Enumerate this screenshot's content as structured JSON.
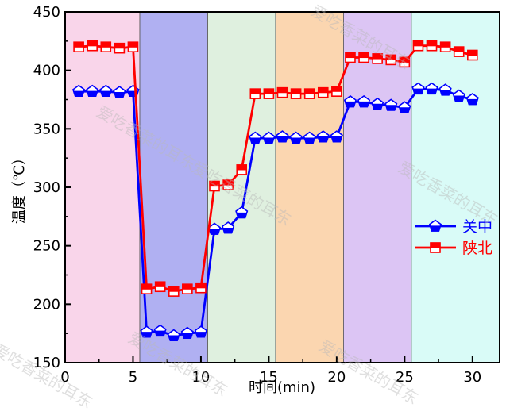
{
  "chart_data": {
    "type": "line",
    "xlabel": "时间(min)",
    "ylabel": "温度（℃）",
    "xlim": [
      0,
      32
    ],
    "ylim": [
      150,
      450
    ],
    "xticks": [
      0,
      5,
      10,
      15,
      20,
      25,
      30
    ],
    "yticks": [
      150,
      200,
      250,
      300,
      350,
      400,
      450
    ],
    "grid": false,
    "legend_position": "right",
    "bands": [
      {
        "from": 0,
        "to": 5.5,
        "color": "#f9d5ea"
      },
      {
        "from": 5.5,
        "to": 10.5,
        "color": "#b0b0f2"
      },
      {
        "from": 10.5,
        "to": 15.5,
        "color": "#dff0df"
      },
      {
        "from": 15.5,
        "to": 20.5,
        "color": "#fbd6b0"
      },
      {
        "from": 20.5,
        "to": 25.5,
        "color": "#dcc5f4"
      },
      {
        "from": 25.5,
        "to": 32,
        "color": "#d9fbf7"
      }
    ],
    "series": [
      {
        "name": "关中",
        "color": "#0000ff",
        "marker": "pentagon-half-filled",
        "x": [
          1,
          2,
          3,
          4,
          5,
          6,
          7,
          8,
          9,
          10,
          11,
          12,
          13,
          14,
          15,
          16,
          17,
          18,
          19,
          20,
          21,
          22,
          23,
          24,
          25,
          26,
          27,
          28,
          29,
          30
        ],
        "values": [
          382,
          382,
          382,
          381,
          382,
          176,
          177,
          173,
          175,
          176,
          264,
          265,
          278,
          342,
          342,
          343,
          342,
          342,
          343,
          343,
          373,
          373,
          371,
          370,
          368,
          384,
          384,
          383,
          378,
          375
        ]
      },
      {
        "name": "陕北",
        "color": "#ff0000",
        "marker": "square-half-filled",
        "x": [
          1,
          2,
          3,
          4,
          5,
          6,
          7,
          8,
          9,
          10,
          11,
          12,
          13,
          14,
          15,
          16,
          17,
          18,
          19,
          20,
          21,
          22,
          23,
          24,
          25,
          26,
          27,
          28,
          29,
          30
        ],
        "values": [
          420,
          421,
          420,
          419,
          420,
          213,
          215,
          211,
          213,
          214,
          301,
          302,
          315,
          380,
          380,
          381,
          380,
          380,
          381,
          382,
          411,
          411,
          410,
          409,
          407,
          421,
          421,
          420,
          416,
          413
        ]
      }
    ]
  },
  "watermark_text": "爱吃香菜的耳东"
}
